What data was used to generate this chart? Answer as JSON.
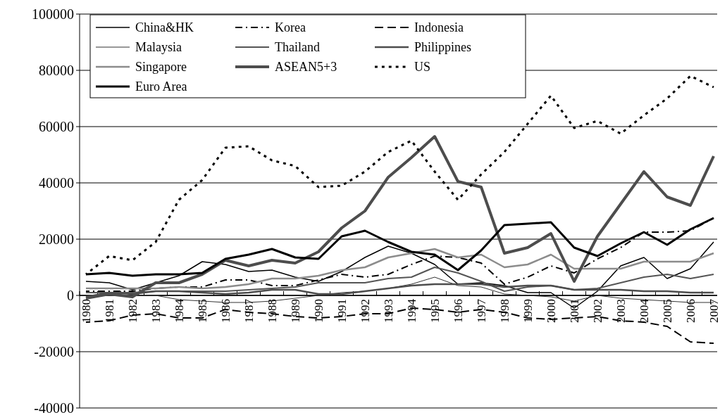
{
  "chart_data": {
    "type": "line",
    "categories": [
      "1980",
      "1981",
      "1982",
      "1983",
      "1984",
      "1985",
      "1986",
      "1987",
      "1988",
      "1989",
      "1990",
      "1991",
      "1992",
      "1993",
      "1994",
      "1995",
      "1996",
      "1997",
      "1998",
      "1999",
      "2000",
      "2001",
      "2002",
      "2003",
      "2004",
      "2005",
      "2006",
      "2007"
    ],
    "ylim": [
      -40000,
      100000
    ],
    "yticks": [
      -40000,
      -20000,
      0,
      20000,
      40000,
      60000,
      80000,
      100000
    ],
    "grid": "y",
    "legend": "top left",
    "marker": "none",
    "series": [
      {
        "name": "China&HK",
        "color": "#000000",
        "line_style": "solid",
        "values": [
          5000,
          4500,
          2000,
          4500,
          7000,
          12000,
          11000,
          8500,
          9000,
          6500,
          5000,
          8500,
          13500,
          17500,
          15000,
          11000,
          4000,
          4500,
          3500,
          1000,
          1000,
          -4500,
          1500,
          10500,
          13500,
          6000,
          9500,
          19000
        ]
      },
      {
        "name": "Korea",
        "color": "#000000",
        "line_style": "dashdot",
        "values": [
          1500,
          1500,
          1500,
          2500,
          3000,
          3000,
          5500,
          5500,
          3500,
          3500,
          5500,
          7500,
          6500,
          7500,
          11000,
          14000,
          13500,
          11500,
          4000,
          6500,
          10500,
          8000,
          13000,
          17000,
          22500,
          22500,
          23000,
          27500
        ]
      },
      {
        "name": "Indonesia",
        "color": "#000000",
        "line_style": "dashed",
        "values": [
          -9500,
          -9000,
          -7000,
          -6500,
          -8000,
          -8000,
          -5000,
          -6000,
          -6500,
          -7500,
          -8000,
          -7500,
          -6500,
          -6500,
          -4500,
          -5000,
          -6000,
          -5000,
          -6000,
          -8000,
          -8500,
          -8000,
          -7500,
          -9000,
          -9500,
          -11000,
          -16500,
          -17000
        ]
      },
      {
        "name": "Malaysia",
        "color": "#333333",
        "line_style": "solid",
        "values": [
          -500,
          0,
          0,
          0,
          -1500,
          -2000,
          -2500,
          -2500,
          -2000,
          -1000,
          0,
          1000,
          1500,
          2500,
          4000,
          6500,
          3500,
          3000,
          500,
          0,
          -500,
          -2000,
          0,
          -1000,
          -1500,
          -2000,
          -2500,
          -2500
        ]
      },
      {
        "name": "Thailand",
        "color": "#555555",
        "line_style": "solid",
        "values": [
          1000,
          1000,
          1000,
          1500,
          1500,
          1500,
          1500,
          2000,
          2500,
          3000,
          4500,
          4500,
          4500,
          6000,
          6500,
          10000,
          8000,
          5000,
          1500,
          3000,
          3500,
          2000,
          2500,
          4500,
          6500,
          7500,
          6000,
          7500
        ]
      },
      {
        "name": "Philippines",
        "color": "#4d4d4d",
        "line_style": "solid",
        "values": [
          -500,
          1000,
          500,
          1500,
          1500,
          1000,
          500,
          1000,
          2000,
          2000,
          500,
          500,
          1500,
          2500,
          3500,
          4000,
          4000,
          4000,
          3000,
          3500,
          3500,
          2000,
          2000,
          2000,
          1500,
          1500,
          1000,
          1000
        ]
      },
      {
        "name": "Singapore",
        "color": "#8c8c8c",
        "line_style": "solid",
        "values": [
          2500,
          2500,
          2500,
          2500,
          3000,
          2500,
          3000,
          4000,
          6000,
          6000,
          7000,
          9000,
          10000,
          13500,
          15000,
          16500,
          13500,
          14500,
          10000,
          11000,
          14500,
          9500,
          9500,
          9500,
          12000,
          12000,
          12000,
          15000
        ]
      },
      {
        "name": "ASEAN5+3",
        "color": "#4d4d4d",
        "line_style": "solid",
        "values": [
          -1000,
          500,
          -500,
          4500,
          4500,
          7500,
          12500,
          10500,
          12500,
          11500,
          15500,
          24000,
          30000,
          42000,
          49000,
          56500,
          40500,
          38500,
          15000,
          17000,
          22000,
          5000,
          21000,
          32500,
          44000,
          35000,
          32000,
          49500
        ]
      },
      {
        "name": "US",
        "color": "#000000",
        "line_style": "dotted",
        "values": [
          7500,
          14000,
          12500,
          19000,
          34000,
          41000,
          52500,
          53000,
          48000,
          46000,
          38500,
          39000,
          44000,
          51000,
          55000,
          44000,
          34000,
          43000,
          51000,
          61000,
          71000,
          59500,
          62000,
          57500,
          64000,
          70000,
          78000,
          74000
        ]
      },
      {
        "name": "Euro Area",
        "color": "#000000",
        "line_style": "solid",
        "values": [
          7500,
          8000,
          7000,
          7500,
          7500,
          8000,
          13000,
          14500,
          16500,
          13500,
          13000,
          21000,
          23000,
          19000,
          15500,
          14500,
          9000,
          16000,
          25000,
          25500,
          26000,
          17000,
          14000,
          18500,
          22500,
          18000,
          23500,
          27500
        ]
      }
    ]
  }
}
